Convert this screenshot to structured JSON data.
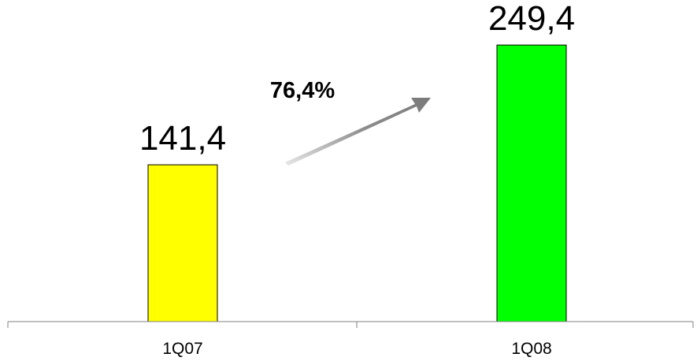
{
  "chart_data": {
    "type": "bar",
    "categories": [
      "1Q07",
      "1Q08"
    ],
    "values": [
      141.4,
      249.4
    ],
    "value_labels": [
      "141,4",
      "249,4"
    ],
    "bar_colors": [
      "#ffff00",
      "#00ff00"
    ],
    "ylim": [
      0,
      290
    ],
    "annotations": [
      {
        "text": "76,4%",
        "kind": "growth-arrow",
        "arrow_color": "#8c8c8c"
      }
    ],
    "grid": false,
    "legend": "none"
  }
}
